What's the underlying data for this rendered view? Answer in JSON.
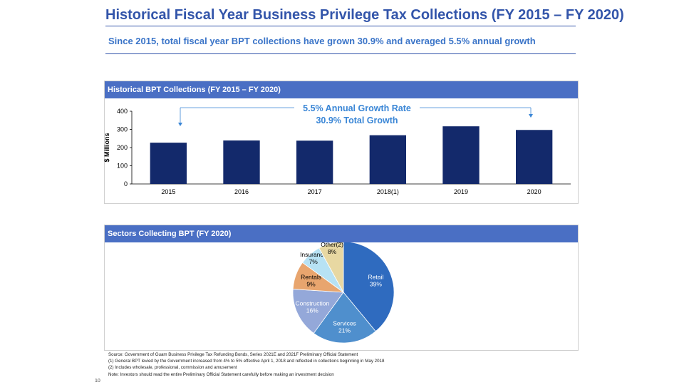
{
  "slide": {
    "title": "Historical Fiscal Year Business Privilege Tax Collections (FY 2015 – FY 2020)",
    "subtitle": "Since 2015, total fiscal year BPT collections have grown 30.9% and averaged 5.5% annual growth",
    "page_number": "10",
    "accent": "#3355aa",
    "panel_header_color": "#4a6fc4"
  },
  "bar_panel": {
    "header": "Historical BPT Collections (FY 2015 – FY 2020)",
    "annotation_line1": "5.5% Annual Growth Rate",
    "annotation_line2": "30.9% Total Growth"
  },
  "pie_panel": {
    "header": "Sectors Collecting BPT (FY 2020)"
  },
  "chart_data": [
    {
      "type": "bar",
      "title": "Historical BPT Collections (FY 2015 – FY 2020)",
      "categories": [
        "2015",
        "2016",
        "2017",
        "2018(1)",
        "2019",
        "2020"
      ],
      "values": [
        227,
        239,
        238,
        268,
        317,
        297
      ],
      "ylabel": "$ Millions",
      "xlabel": "",
      "ylim": [
        0,
        400
      ],
      "yticks": [
        0,
        100,
        200,
        300,
        400
      ],
      "color": "#13296b",
      "grid": false
    },
    {
      "type": "pie",
      "title": "Sectors Collecting BPT (FY 2020)",
      "labels": [
        "Retail",
        "Services",
        "Construction",
        "Rentals",
        "Insurance",
        "Other(2)"
      ],
      "values": [
        39,
        21,
        16,
        9,
        7,
        8
      ],
      "display": [
        "39%",
        "21%",
        "16%",
        "9%",
        "7%",
        "8%"
      ],
      "colors": [
        "#2f6bbf",
        "#4f8fcd",
        "#94a8d9",
        "#e8a56e",
        "#b7e2f4",
        "#e8d8a2"
      ],
      "label_colors": [
        "#ffffff",
        "#ffffff",
        "#ffffff",
        "#000000",
        "#000000",
        "#000000"
      ]
    }
  ],
  "footer": {
    "source": "Source: Government of Guam Business Privilege Tax Refunding Bonds, Series 2021E and 2021F Preliminary Official Statement",
    "note1": "(1) General BPT levied by the Government increased from 4% to 5% effective April 1, 2018 and reflected in collections beginning in May 2018",
    "note2": "(2) Includes wholesale, professional, commission and amusement",
    "note3": "Note: Investors should read the entire Preliminary Official Statement carefully before making an investment decision"
  }
}
